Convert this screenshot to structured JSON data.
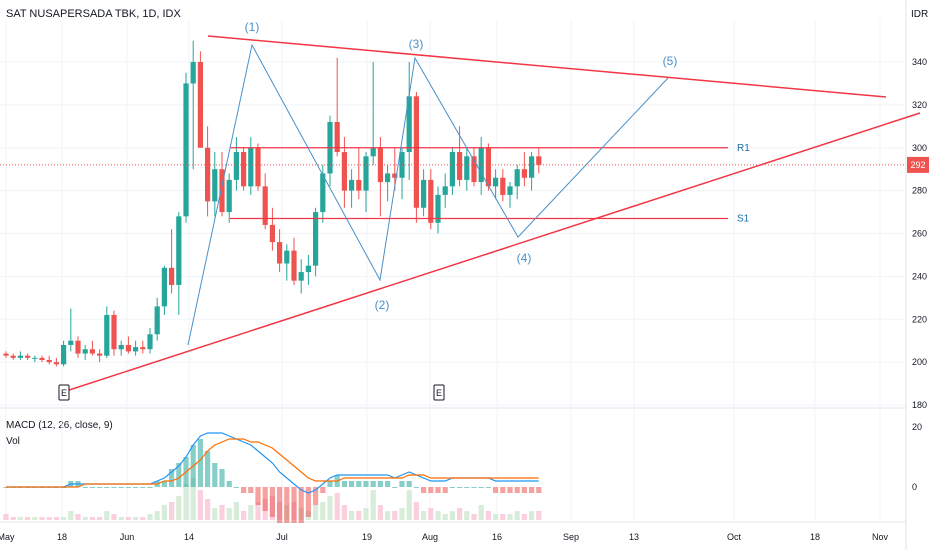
{
  "header": {
    "symbol": "SAT NUSAPERSADA TBK, 1D, IDX",
    "currency": "IDR"
  },
  "macd_panel": {
    "label": "MACD (12, 26, close, 9)",
    "vol_label": "Vol",
    "axis_ticks": [
      "20",
      "0"
    ]
  },
  "colors": {
    "up": "#26a69a",
    "down": "#ef5350",
    "trendline": "#f23645",
    "wave": "#2962ff",
    "macd_line": "#2196f3",
    "signal_line": "#ff6d00",
    "hist_pos": "#26a69a",
    "hist_neg": "#ef5350",
    "current_price": "#ef5350",
    "grid": "#f0f3fa",
    "axis_text": "#131722"
  },
  "chart_data": {
    "type": "candlestick",
    "price_ticks": [
      180,
      200,
      220,
      240,
      260,
      280,
      300,
      320,
      340
    ],
    "x_tick_labels": [
      "May",
      "18",
      "Jun",
      "14",
      "Jul",
      "19",
      "Aug",
      "16",
      "Sep",
      "13",
      "Oct",
      "18",
      "Nov"
    ],
    "ylim": [
      180,
      350
    ],
    "current_price": "292",
    "candles": [
      [
        204,
        205,
        202,
        203
      ],
      [
        203,
        204,
        201,
        202
      ],
      [
        202,
        205,
        201,
        203
      ],
      [
        203,
        204,
        201,
        202
      ],
      [
        202,
        203,
        200,
        202
      ],
      [
        202,
        203,
        200,
        201
      ],
      [
        201,
        203,
        199,
        200
      ],
      [
        200,
        202,
        198,
        199
      ],
      [
        199,
        210,
        198,
        208
      ],
      [
        208,
        225,
        205,
        210
      ],
      [
        210,
        212,
        202,
        204
      ],
      [
        204,
        208,
        201,
        206
      ],
      [
        206,
        210,
        203,
        204
      ],
      [
        204,
        206,
        200,
        203
      ],
      [
        203,
        226,
        202,
        222
      ],
      [
        222,
        224,
        203,
        206
      ],
      [
        206,
        210,
        203,
        208
      ],
      [
        208,
        212,
        204,
        205
      ],
      [
        205,
        210,
        203,
        207
      ],
      [
        207,
        210,
        204,
        206
      ],
      [
        206,
        216,
        204,
        213
      ],
      [
        213,
        230,
        210,
        226
      ],
      [
        226,
        245,
        222,
        244
      ],
      [
        244,
        262,
        232,
        236
      ],
      [
        236,
        270,
        222,
        268
      ],
      [
        268,
        335,
        265,
        330
      ],
      [
        330,
        350,
        290,
        340
      ],
      [
        340,
        345,
        300,
        300
      ],
      [
        300,
        310,
        268,
        275
      ],
      [
        275,
        298,
        268,
        290
      ],
      [
        290,
        298,
        268,
        270
      ],
      [
        270,
        288,
        265,
        285
      ],
      [
        285,
        305,
        280,
        298
      ],
      [
        298,
        300,
        280,
        282
      ],
      [
        282,
        305,
        278,
        300
      ],
      [
        300,
        302,
        280,
        282
      ],
      [
        282,
        288,
        262,
        264
      ],
      [
        264,
        272,
        252,
        256
      ],
      [
        256,
        262,
        242,
        246
      ],
      [
        246,
        255,
        238,
        252
      ],
      [
        252,
        258,
        236,
        238
      ],
      [
        238,
        248,
        232,
        242
      ],
      [
        242,
        250,
        236,
        245
      ],
      [
        245,
        272,
        240,
        270
      ],
      [
        270,
        292,
        265,
        288
      ],
      [
        288,
        315,
        282,
        312
      ],
      [
        312,
        342,
        296,
        298
      ],
      [
        298,
        305,
        272,
        280
      ],
      [
        280,
        290,
        272,
        285
      ],
      [
        285,
        300,
        276,
        280
      ],
      [
        280,
        298,
        270,
        296
      ],
      [
        296,
        340,
        292,
        300
      ],
      [
        300,
        305,
        268,
        284
      ],
      [
        284,
        292,
        275,
        288
      ],
      [
        288,
        300,
        280,
        286
      ],
      [
        286,
        300,
        276,
        298
      ],
      [
        298,
        340,
        285,
        324
      ],
      [
        324,
        326,
        265,
        272
      ],
      [
        272,
        290,
        268,
        285
      ],
      [
        285,
        290,
        262,
        265
      ],
      [
        265,
        282,
        260,
        278
      ],
      [
        278,
        288,
        272,
        282
      ],
      [
        282,
        300,
        278,
        298
      ],
      [
        298,
        310,
        282,
        285
      ],
      [
        285,
        300,
        280,
        296
      ],
      [
        296,
        300,
        282,
        284
      ],
      [
        284,
        305,
        278,
        300
      ],
      [
        300,
        302,
        280,
        282
      ],
      [
        282,
        290,
        276,
        286
      ],
      [
        286,
        290,
        275,
        278
      ],
      [
        278,
        284,
        272,
        282
      ],
      [
        282,
        292,
        276,
        290
      ],
      [
        290,
        298,
        282,
        286
      ],
      [
        286,
        298,
        280,
        296
      ],
      [
        296,
        300,
        288,
        292
      ]
    ],
    "resistance_line": {
      "label": "R1",
      "price": 300
    },
    "support_line": {
      "label": "S1",
      "price": 267
    },
    "wave_labels": [
      "(1)",
      "(2)",
      "(3)",
      "(4)",
      "(5)"
    ],
    "event_markers": [
      "E",
      "E"
    ],
    "macd_ticks": [
      20,
      0
    ],
    "macd": [
      0,
      0,
      0,
      0,
      0,
      0,
      0,
      0,
      0,
      1,
      1,
      1,
      1,
      1,
      1,
      1,
      1,
      1,
      1,
      1,
      1,
      2,
      3,
      5,
      7,
      10,
      14,
      17,
      18,
      18,
      18,
      17,
      16,
      15,
      14,
      12,
      10,
      8,
      5,
      3,
      1,
      -1,
      -2,
      -1,
      1,
      3,
      4,
      4,
      4,
      4,
      4,
      4,
      4,
      4,
      3,
      4,
      5,
      4,
      3,
      2,
      2,
      2,
      3,
      3,
      3,
      3,
      3,
      3,
      2,
      2,
      2,
      2,
      2,
      2,
      2
    ],
    "signal": [
      0,
      0,
      0,
      0,
      0,
      0,
      0,
      0,
      0,
      0,
      0,
      1,
      1,
      1,
      1,
      1,
      1,
      1,
      1,
      1,
      1,
      1,
      2,
      2,
      3,
      5,
      7,
      9,
      12,
      14,
      15,
      16,
      16,
      16,
      15,
      15,
      14,
      13,
      11,
      9,
      7,
      5,
      3,
      2,
      2,
      2,
      2,
      3,
      3,
      3,
      3,
      3,
      3,
      3,
      3,
      3,
      4,
      4,
      4,
      3,
      3,
      3,
      3,
      3,
      3,
      3,
      3,
      3,
      3,
      3,
      3,
      3,
      3,
      3,
      3
    ],
    "volume": [
      2,
      1,
      1,
      1,
      1,
      1,
      1,
      1,
      1,
      3,
      2,
      1,
      1,
      1,
      3,
      2,
      1,
      1,
      1,
      1,
      2,
      3,
      5,
      6,
      8,
      12,
      14,
      10,
      7,
      4,
      5,
      4,
      6,
      3,
      5,
      6,
      7,
      8,
      6,
      5,
      6,
      4,
      3,
      5,
      6,
      8,
      9,
      5,
      3,
      3,
      4,
      10,
      5,
      3,
      3,
      4,
      10,
      6,
      3,
      4,
      3,
      2,
      3,
      4,
      3,
      2,
      5,
      3,
      2,
      2,
      2,
      3,
      2,
      3,
      3
    ]
  }
}
